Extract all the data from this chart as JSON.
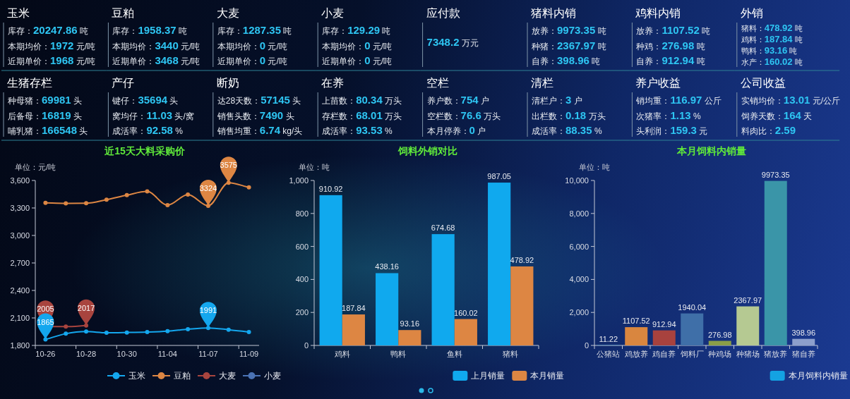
{
  "chart_data": [
    {
      "type": "other",
      "title": "玉米",
      "annotations": [
        "库存：20247.86 吨",
        "本期均价：1972 元/吨",
        "近期单价：1968 元/吨"
      ]
    },
    {
      "type": "other",
      "title": "豆粕",
      "annotations": [
        "库存：1958.37 吨",
        "本期均价：3440 元/吨",
        "近期单价：3468 元/吨"
      ]
    },
    {
      "type": "other",
      "title": "大麦",
      "annotations": [
        "库存：1287.35 吨",
        "本期均价：0 元/吨",
        "近期单价：0 元/吨"
      ]
    },
    {
      "type": "other",
      "title": "小麦",
      "annotations": [
        "库存：129.29 吨",
        "本期均价：0 元/吨",
        "近期单价：0 元/吨"
      ]
    },
    {
      "type": "other",
      "title": "应付款",
      "annotations": [
        "7348.2 万元"
      ]
    },
    {
      "type": "other",
      "title": "猪料内销",
      "annotations": [
        "放养：9973.35 吨",
        "种猪：2367.97 吨",
        "自养：398.96 吨"
      ]
    },
    {
      "type": "other",
      "title": "鸡料内销",
      "annotations": [
        "放养：1107.52 吨",
        "种鸡：276.98 吨",
        "自养：912.94 吨"
      ]
    },
    {
      "type": "other",
      "title": "外销",
      "annotations": [
        "猪料：478.92 吨",
        "鸡料：187.84 吨",
        "鸭料：93.16 吨",
        "水产：160.02 吨"
      ]
    },
    {
      "type": "other",
      "title": "生猪存栏",
      "annotations": [
        "种母猪：69981 头",
        "后备母：16819 头",
        "哺乳猪：166548 头"
      ]
    },
    {
      "type": "other",
      "title": "产仔",
      "annotations": [
        "键仔：35694 头",
        "窝均仔：11.03 头/窝",
        "成活率：92.58 %"
      ]
    },
    {
      "type": "other",
      "title": "断奶",
      "annotations": [
        "达28天数：57145 头",
        "销售头数：7490 头",
        "销售均重：6.74 kg/头"
      ]
    },
    {
      "type": "other",
      "title": "在养",
      "annotations": [
        "上苗数：80.34 万头",
        "存栏数：68.01 万头",
        "成活率：93.53 %"
      ]
    },
    {
      "type": "other",
      "title": "空栏",
      "annotations": [
        "养户数：754 户",
        "空栏数：76.6 万头",
        "本月停养：0 户"
      ]
    },
    {
      "type": "other",
      "title": "清栏",
      "annotations": [
        "清栏户：3 户",
        "出栏数：0.18 万头",
        "成活率：88.35 %"
      ]
    },
    {
      "type": "other",
      "title": "养户收益",
      "annotations": [
        "销均重：116.97 公斤",
        "次猪率：1.13 %",
        "头利润：159.3 元"
      ]
    },
    {
      "type": "other",
      "title": "公司收益",
      "annotations": [
        "实销均价：13.01 元/公斤",
        "饲养天数：164 天",
        "料肉比：2.59"
      ]
    },
    {
      "type": "line",
      "title": "近15天大料采购价",
      "ylabel": "单位：元/吨",
      "categories": [
        "10-26",
        null,
        "10-28",
        null,
        "10-30",
        null,
        "11-04",
        null,
        "11-07",
        null,
        "11-09"
      ],
      "ylim": [
        1800,
        3600
      ],
      "yticks": [
        {
          "value": 1800,
          "label": "1,800"
        },
        {
          "value": 2100,
          "label": "2,100"
        },
        {
          "value": 2400,
          "label": "2,400"
        },
        {
          "value": 2700,
          "label": "2,700"
        },
        {
          "value": 3000,
          "label": "3,000"
        },
        {
          "value": 3300,
          "label": "3,300"
        },
        {
          "value": 3600,
          "label": "3,600"
        }
      ],
      "marker": "circle",
      "legend": "bottom right",
      "series": [
        {
          "name": "玉米",
          "color": "#14a7ee",
          "values": [
            1865,
            1928,
            1951,
            1938,
            1941,
            1946,
            1956,
            1977,
            1991,
            1972,
            1946
          ],
          "value_labels": [
            "1865",
            null,
            null,
            null,
            null,
            null,
            null,
            null,
            "1991",
            null,
            null
          ]
        },
        {
          "name": "豆粕",
          "color": "#dd8643",
          "values": [
            3356,
            3350,
            3351,
            3390,
            3440,
            3480,
            3330,
            3446,
            3324,
            3575,
            3525
          ],
          "value_labels": [
            null,
            null,
            null,
            null,
            null,
            null,
            null,
            null,
            "3324",
            "3575",
            null
          ]
        },
        {
          "name": "大麦",
          "color": "#a8443e",
          "values": [
            2005,
            2005,
            2017,
            null,
            null,
            null,
            null,
            null,
            null,
            null,
            null
          ],
          "value_labels": [
            "2005",
            null,
            "2017",
            null,
            null,
            null,
            null,
            null,
            null,
            null,
            null
          ]
        },
        {
          "name": "小麦",
          "color": "#4a72b4",
          "values": [
            null,
            null,
            null,
            null,
            null,
            null,
            null,
            null,
            null,
            null,
            null
          ]
        }
      ]
    },
    {
      "type": "bar",
      "title": "饲料外销对比",
      "ylabel": "单位：吨",
      "categories": [
        "鸡料",
        "鸭料",
        "鱼料",
        "猪料"
      ],
      "ylim": [
        0,
        1000
      ],
      "yticks": [
        0,
        200,
        400,
        600,
        800,
        {
          "value": 1000,
          "label": "1,000"
        }
      ],
      "data_labels": true,
      "legend": "bottom right",
      "series": [
        {
          "name": "上月销量",
          "color": "#10a9ee",
          "values": [
            910.92,
            438.16,
            674.68,
            987.05
          ]
        },
        {
          "name": "本月销量",
          "color": "#dd8643",
          "values": [
            187.84,
            93.16,
            160.02,
            478.92
          ]
        }
      ]
    },
    {
      "type": "bar",
      "title": "本月饲料内销量",
      "ylabel": "单位：吨",
      "categories": [
        "公猪站",
        "鸡放养",
        "鸡自养",
        "饲料厂",
        "种鸡场",
        "种猪场",
        "猪放养",
        "猪自养"
      ],
      "ylim": [
        0,
        10000
      ],
      "yticks": [
        0,
        {
          "value": 2000,
          "label": "2,000"
        },
        {
          "value": 4000,
          "label": "4,000"
        },
        {
          "value": 6000,
          "label": "6,000"
        },
        {
          "value": 8000,
          "label": "8,000"
        },
        {
          "value": 10000,
          "label": "10,000"
        }
      ],
      "data_labels": true,
      "legend": "bottom right",
      "series": [
        {
          "name": "本月饲料内销量",
          "color": "#14a2e2",
          "colors": [
            "#14a7ee",
            "#d9863f",
            "#a8423e",
            "#3f6fa8",
            "#8a9e48",
            "#b5c992",
            "#3a95a8",
            "#8d9fcc"
          ],
          "values": [
            11.22,
            1107.52,
            912.94,
            1940.04,
            276.98,
            2367.97,
            9973.35,
            398.96
          ]
        }
      ]
    }
  ]
}
